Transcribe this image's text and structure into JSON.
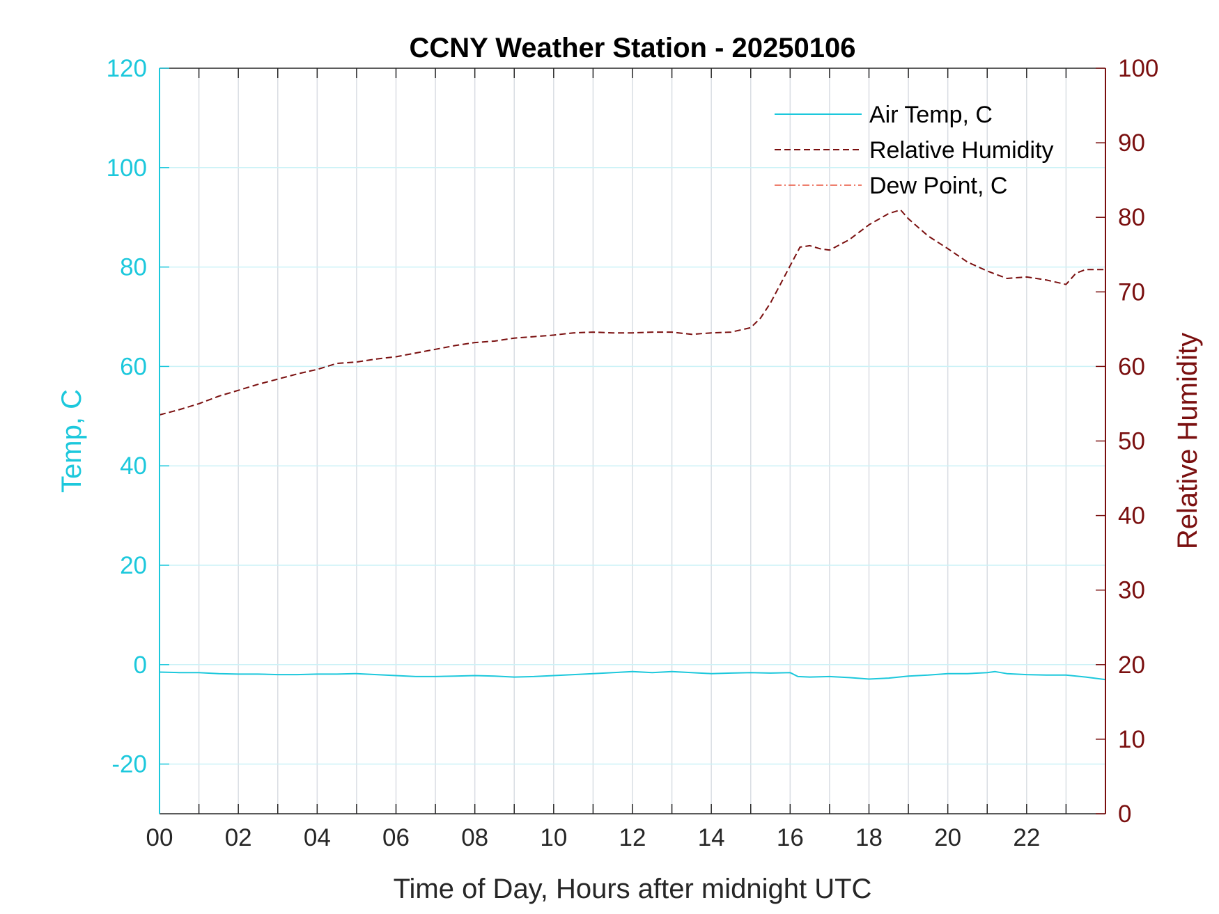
{
  "chart_data": {
    "type": "line",
    "title": "CCNY Weather Station - 20250106",
    "xlabel": "Time of Day, Hours after midnight UTC",
    "ylabel_left": "Temp, C",
    "ylabel_right": "Relative Humidity",
    "xlim": [
      0,
      24
    ],
    "ylim_left": [
      -30,
      120
    ],
    "ylim_right": [
      0,
      100
    ],
    "x_ticks": [
      "00",
      "02",
      "04",
      "06",
      "08",
      "10",
      "12",
      "14",
      "16",
      "18",
      "20",
      "22"
    ],
    "x_tick_values": [
      0,
      2,
      4,
      6,
      8,
      10,
      12,
      14,
      16,
      18,
      20,
      22
    ],
    "y_ticks_left": [
      "120",
      "100",
      "80",
      "60",
      "40",
      "20",
      "0",
      "-20"
    ],
    "y_tick_values_left": [
      120,
      100,
      80,
      60,
      40,
      20,
      0,
      -20
    ],
    "y_ticks_right": [
      "100",
      "90",
      "80",
      "70",
      "60",
      "50",
      "40",
      "30",
      "20",
      "10",
      "0"
    ],
    "y_tick_values_right": [
      100,
      90,
      80,
      70,
      60,
      50,
      40,
      30,
      20,
      10,
      0
    ],
    "grid": true,
    "legend_position": "top-right",
    "colors": {
      "left_axis": "#1cc8dc",
      "right_axis": "#7a0f0f",
      "air_temp": "#1cc8dc",
      "humidity": "#7a0f0f",
      "dew_point": "#e8553e",
      "x_axis": "#262626",
      "grid": "#d9dde3"
    },
    "series": [
      {
        "name": "Air Temp, C",
        "axis": "left",
        "style": "solid",
        "x": [
          0,
          0.5,
          1,
          1.5,
          2,
          2.5,
          3,
          3.5,
          4,
          4.5,
          5,
          5.5,
          6,
          6.5,
          7,
          7.5,
          8,
          8.5,
          9,
          9.5,
          10,
          10.5,
          11,
          11.5,
          12,
          12.5,
          13,
          13.5,
          14,
          14.5,
          15,
          15.5,
          16,
          16.2,
          16.5,
          17,
          17.5,
          18,
          18.5,
          19,
          19.5,
          20,
          20.5,
          21,
          21.2,
          21.5,
          22,
          22.5,
          23,
          23.5,
          24
        ],
        "y": [
          -1.5,
          -1.6,
          -1.6,
          -1.8,
          -1.9,
          -1.9,
          -2.0,
          -2.0,
          -1.9,
          -1.9,
          -1.8,
          -2.0,
          -2.2,
          -2.4,
          -2.4,
          -2.3,
          -2.2,
          -2.3,
          -2.5,
          -2.4,
          -2.2,
          -2.0,
          -1.8,
          -1.6,
          -1.4,
          -1.6,
          -1.4,
          -1.6,
          -1.8,
          -1.7,
          -1.6,
          -1.7,
          -1.6,
          -2.4,
          -2.5,
          -2.4,
          -2.6,
          -2.9,
          -2.7,
          -2.3,
          -2.1,
          -1.8,
          -1.8,
          -1.6,
          -1.4,
          -1.8,
          -2.0,
          -2.1,
          -2.1,
          -2.5,
          -3.0
        ]
      },
      {
        "name": "Relative Humidity",
        "axis": "right",
        "style": "dashed",
        "x": [
          0,
          0.5,
          1,
          1.5,
          2,
          2.5,
          3,
          3.5,
          4,
          4.5,
          5,
          5.5,
          6,
          6.5,
          7,
          7.5,
          8,
          8.5,
          9,
          9.5,
          10,
          10.5,
          11,
          11.5,
          12,
          12.5,
          13,
          13.5,
          14,
          14.5,
          15,
          15.25,
          15.5,
          15.75,
          16,
          16.25,
          16.5,
          16.75,
          17,
          17.5,
          18,
          18.5,
          18.8,
          19,
          19.5,
          20,
          20.5,
          21,
          21.5,
          22,
          22.5,
          23,
          23.25,
          23.5,
          23.75,
          24
        ],
        "y": [
          53.5,
          54.2,
          55.0,
          56.0,
          56.8,
          57.6,
          58.3,
          59.0,
          59.6,
          60.4,
          60.6,
          61.0,
          61.3,
          61.8,
          62.3,
          62.8,
          63.2,
          63.4,
          63.8,
          64.0,
          64.2,
          64.5,
          64.6,
          64.5,
          64.5,
          64.6,
          64.6,
          64.3,
          64.5,
          64.6,
          65.2,
          66.5,
          68.5,
          71.0,
          73.5,
          76.0,
          76.2,
          75.8,
          75.6,
          77.0,
          79.0,
          80.5,
          81.0,
          79.8,
          77.5,
          75.8,
          74.0,
          72.8,
          71.8,
          72.0,
          71.6,
          71.0,
          72.5,
          73.0,
          73.0,
          73.0
        ]
      },
      {
        "name": "Dew Point, C",
        "axis": "left",
        "style": "dash-dot",
        "x": [],
        "y": []
      }
    ]
  }
}
